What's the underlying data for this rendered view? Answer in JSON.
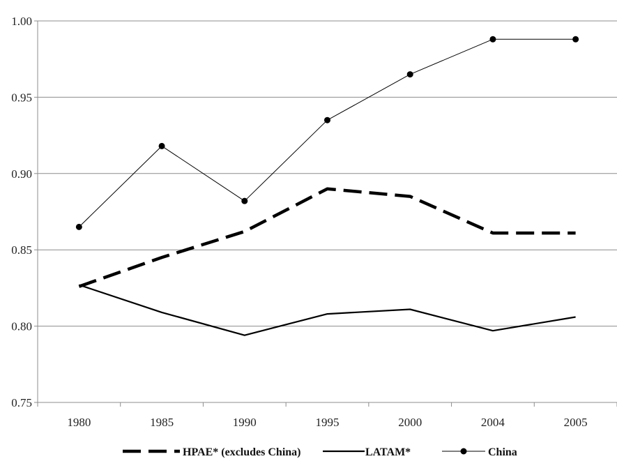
{
  "chart_data": {
    "type": "line",
    "title": "",
    "xlabel": "",
    "ylabel": "",
    "categories": [
      "1980",
      "1985",
      "1990",
      "1995",
      "2000",
      "2004",
      "2005"
    ],
    "ylim": [
      0.75,
      1.0
    ],
    "yticks": [
      "0.75",
      "0.80",
      "0.85",
      "0.90",
      "0.95",
      "1.00"
    ],
    "grid": "horizontal",
    "legend_position": "bottom",
    "series": [
      {
        "name": "HPAE* (excludes China)",
        "style": "dashed",
        "color": "#000000",
        "values": [
          0.826,
          0.845,
          0.862,
          0.89,
          0.885,
          0.861,
          0.861
        ]
      },
      {
        "name": "LATAM*",
        "style": "solid",
        "color": "#000000",
        "values": [
          0.827,
          0.809,
          0.794,
          0.808,
          0.811,
          0.797,
          0.806
        ]
      },
      {
        "name": "China",
        "style": "solid-markers",
        "marker": "circle",
        "color": "#000000",
        "values": [
          0.865,
          0.918,
          0.882,
          0.935,
          0.965,
          0.988,
          0.988
        ]
      }
    ]
  }
}
